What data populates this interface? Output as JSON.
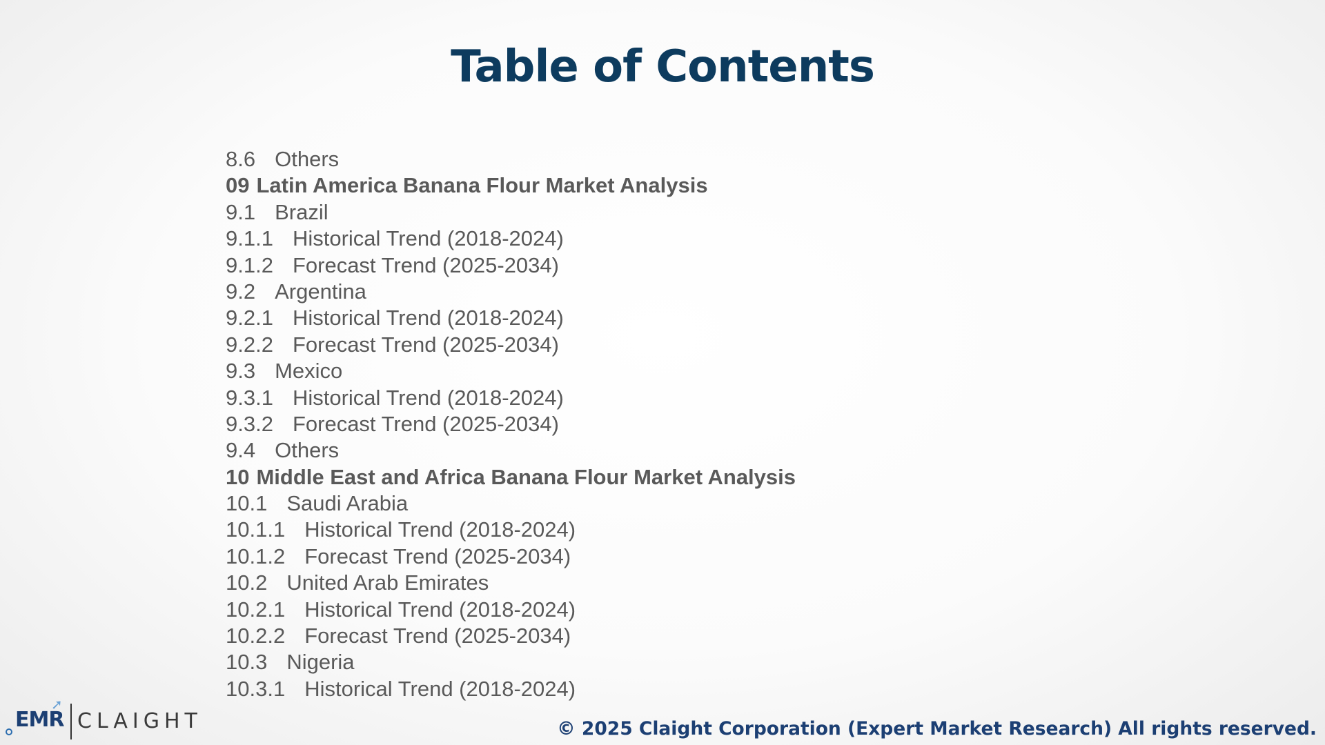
{
  "title": "Table of Contents",
  "toc": [
    {
      "num": "8.6",
      "label": "Others",
      "bold": false
    },
    {
      "num": "09",
      "label": "Latin America Banana Flour Market Analysis",
      "bold": true
    },
    {
      "num": "9.1",
      "label": "Brazil",
      "bold": false
    },
    {
      "num": "9.1.1",
      "label": "Historical Trend (2018-2024)",
      "bold": false
    },
    {
      "num": "9.1.2",
      "label": "Forecast Trend (2025-2034)",
      "bold": false
    },
    {
      "num": "9.2",
      "label": "Argentina",
      "bold": false
    },
    {
      "num": "9.2.1",
      "label": "Historical Trend (2018-2024)",
      "bold": false
    },
    {
      "num": "9.2.2",
      "label": "Forecast Trend (2025-2034)",
      "bold": false
    },
    {
      "num": "9.3",
      "label": "Mexico",
      "bold": false
    },
    {
      "num": "9.3.1",
      "label": "Historical Trend (2018-2024)",
      "bold": false
    },
    {
      "num": "9.3.2",
      "label": "Forecast Trend (2025-2034)",
      "bold": false
    },
    {
      "num": "9.4",
      "label": "Others",
      "bold": false
    },
    {
      "num": "10",
      "label": "Middle East and Africa Banana Flour Market Analysis",
      "bold": true
    },
    {
      "num": "10.1",
      "label": "Saudi Arabia",
      "bold": false
    },
    {
      "num": "10.1.1",
      "label": "Historical Trend (2018-2024)",
      "bold": false
    },
    {
      "num": "10.1.2",
      "label": "Forecast Trend (2025-2034)",
      "bold": false
    },
    {
      "num": "10.2",
      "label": "United Arab Emirates",
      "bold": false
    },
    {
      "num": "10.2.1",
      "label": "Historical Trend (2018-2024)",
      "bold": false
    },
    {
      "num": "10.2.2",
      "label": "Forecast Trend (2025-2034)",
      "bold": false
    },
    {
      "num": "10.3",
      "label": "Nigeria",
      "bold": false
    },
    {
      "num": "10.3.1",
      "label": "Historical Trend (2018-2024)",
      "bold": false
    }
  ],
  "logo": {
    "emr": "EMR",
    "claight": "CLAIGHT",
    "icon": "upward-arrow-icon"
  },
  "footer": {
    "copyright": "© 2025 Claight Corporation (Expert Market Research) All rights reserved."
  },
  "colors": {
    "title": "#0d3b5e",
    "body_text": "#595959",
    "brand_navy": "#1c3f73"
  }
}
